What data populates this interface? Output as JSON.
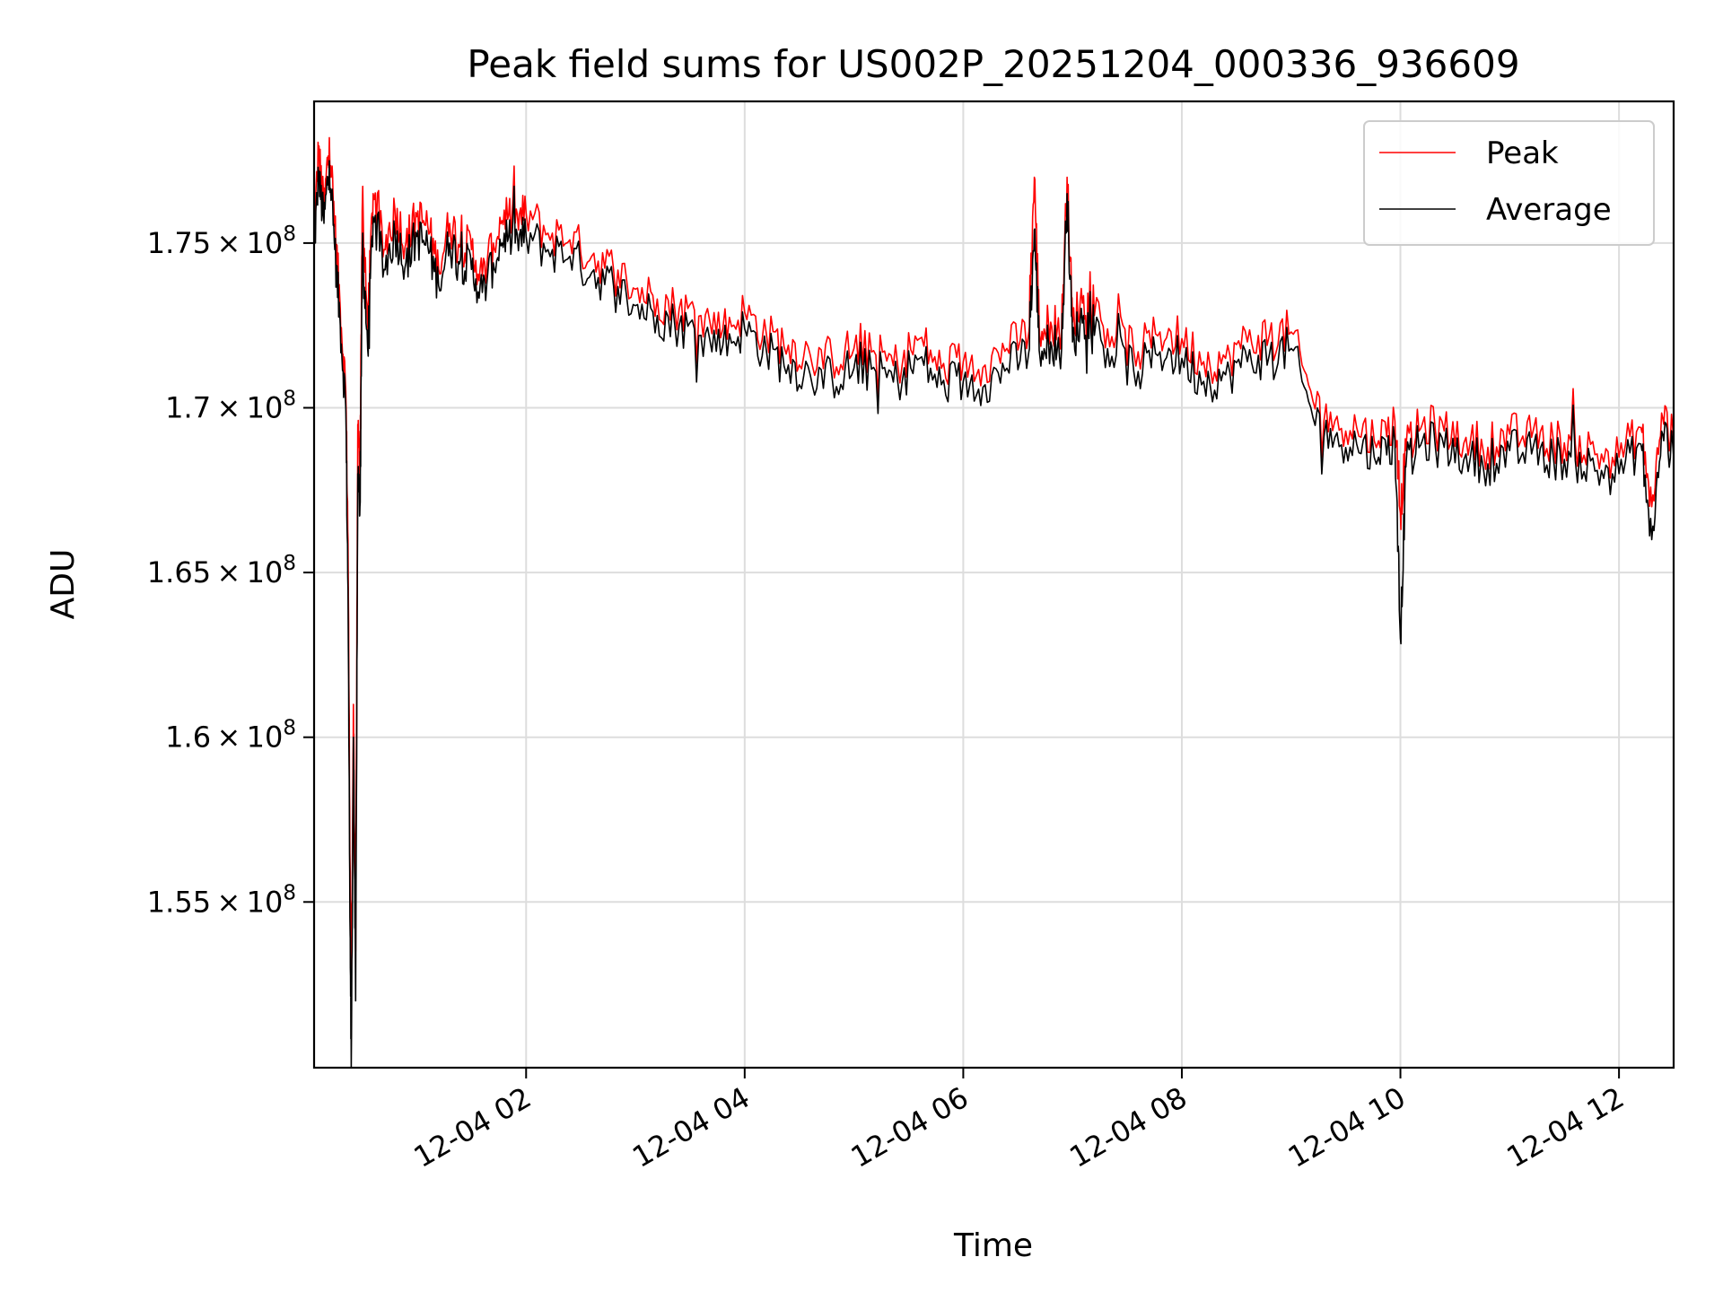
{
  "chart_data": {
    "type": "line",
    "title": "Peak field sums for US002P_20251204_000336_936609",
    "xlabel": "Time",
    "ylabel": "ADU",
    "x_range_hours": [
      0.06,
      12.5
    ],
    "ylim": [
      149970000.0,
      179300000.0
    ],
    "grid": true,
    "legend_position": "top-right",
    "x_ticks": [
      {
        "value": 2,
        "label": "12-04 02"
      },
      {
        "value": 4,
        "label": "12-04 04"
      },
      {
        "value": 6,
        "label": "12-04 06"
      },
      {
        "value": 8,
        "label": "12-04 08"
      },
      {
        "value": 10,
        "label": "12-04 10"
      },
      {
        "value": 12,
        "label": "12-04 12"
      }
    ],
    "y_ticks": [
      {
        "value": 175000000,
        "mantissa": "1.75",
        "exponent": "8"
      },
      {
        "value": 170000000,
        "mantissa": "1.7",
        "exponent": "8"
      },
      {
        "value": 165000000,
        "mantissa": "1.65",
        "exponent": "8"
      },
      {
        "value": 160000000,
        "mantissa": "1.6",
        "exponent": "8"
      },
      {
        "value": 155000000,
        "mantissa": "1.55",
        "exponent": "8"
      }
    ],
    "series": [
      {
        "name": "Peak",
        "color": "#ff0000",
        "x": [
          0.06,
          0.1,
          0.15,
          0.2,
          0.25,
          0.3,
          0.35,
          0.37,
          0.39,
          0.4,
          0.42,
          0.44,
          0.46,
          0.48,
          0.5,
          0.55,
          0.6,
          0.7,
          0.8,
          0.9,
          1.0,
          1.1,
          1.2,
          1.3,
          1.4,
          1.5,
          1.6,
          1.7,
          1.8,
          1.9,
          2.0,
          2.2,
          2.4,
          2.6,
          2.8,
          3.0,
          3.2,
          3.4,
          3.6,
          3.8,
          4.0,
          4.2,
          4.4,
          4.6,
          4.8,
          5.0,
          5.2,
          5.4,
          5.6,
          5.8,
          6.0,
          6.2,
          6.4,
          6.6,
          6.65,
          6.7,
          6.8,
          6.9,
          6.95,
          7.0,
          7.1,
          7.2,
          7.4,
          7.6,
          7.8,
          8.0,
          8.2,
          8.4,
          8.6,
          8.8,
          9.0,
          9.2,
          9.4,
          9.6,
          9.8,
          9.95,
          10.0,
          10.05,
          10.2,
          10.4,
          10.6,
          10.8,
          11.0,
          11.2,
          11.4,
          11.6,
          11.8,
          12.0,
          12.2,
          12.3,
          12.4,
          12.5
        ],
        "values": [
          175.2,
          177.8,
          176.0,
          178.2,
          175.5,
          173.0,
          170.5,
          166.0,
          156.0,
          152.0,
          161.0,
          153.5,
          169.5,
          168.0,
          176.0,
          172.5,
          176.5,
          174.8,
          176.0,
          175.0,
          175.8,
          175.5,
          174.2,
          175.6,
          175.0,
          174.8,
          174.0,
          175.0,
          176.0,
          175.6,
          175.9,
          175.3,
          175.1,
          174.6,
          174.2,
          173.6,
          173.3,
          173.0,
          172.8,
          172.4,
          172.9,
          172.2,
          171.9,
          171.6,
          171.5,
          171.8,
          171.6,
          171.3,
          172.1,
          171.2,
          171.4,
          171.3,
          171.8,
          172.3,
          177.0,
          172.2,
          172.6,
          172.4,
          177.0,
          172.6,
          173.4,
          172.8,
          172.2,
          171.7,
          172.3,
          172.1,
          171.4,
          171.5,
          172.0,
          172.2,
          172.3,
          170.2,
          169.6,
          169.4,
          169.0,
          169.6,
          166.8,
          168.7,
          169.5,
          169.3,
          169.1,
          168.8,
          169.2,
          169.1,
          169.0,
          168.9,
          168.6,
          168.5,
          169.4,
          167.0,
          169.7,
          169.0
        ]
      },
      {
        "name": "Average",
        "color": "#000000",
        "x": [
          0.06,
          0.1,
          0.15,
          0.2,
          0.25,
          0.3,
          0.35,
          0.37,
          0.39,
          0.4,
          0.42,
          0.44,
          0.46,
          0.48,
          0.5,
          0.55,
          0.6,
          0.7,
          0.8,
          0.9,
          1.0,
          1.1,
          1.2,
          1.3,
          1.4,
          1.5,
          1.6,
          1.7,
          1.8,
          1.9,
          2.0,
          2.2,
          2.4,
          2.6,
          2.8,
          3.0,
          3.2,
          3.4,
          3.6,
          3.8,
          4.0,
          4.2,
          4.4,
          4.6,
          4.8,
          5.0,
          5.2,
          5.4,
          5.6,
          5.8,
          6.0,
          6.2,
          6.4,
          6.6,
          6.65,
          6.7,
          6.8,
          6.9,
          6.95,
          7.0,
          7.1,
          7.2,
          7.4,
          7.6,
          7.8,
          8.0,
          8.2,
          8.4,
          8.6,
          8.8,
          9.0,
          9.2,
          9.4,
          9.6,
          9.8,
          9.95,
          10.0,
          10.05,
          10.2,
          10.4,
          10.6,
          10.8,
          11.0,
          11.2,
          11.4,
          11.6,
          11.8,
          12.0,
          12.2,
          12.3,
          12.4,
          12.5
        ],
        "values": [
          174.8,
          177.0,
          175.6,
          177.5,
          174.8,
          172.5,
          170.0,
          164.5,
          154.0,
          150.0,
          160.0,
          152.0,
          168.0,
          167.0,
          174.5,
          171.8,
          175.8,
          174.2,
          175.3,
          174.4,
          175.2,
          174.9,
          173.7,
          175.0,
          174.5,
          174.2,
          173.5,
          174.4,
          175.3,
          175.0,
          175.2,
          174.8,
          174.6,
          174.1,
          173.7,
          173.1,
          172.8,
          172.5,
          172.2,
          171.9,
          172.4,
          171.7,
          171.3,
          171.0,
          170.9,
          171.2,
          171.1,
          170.8,
          171.5,
          170.7,
          170.8,
          170.7,
          171.2,
          171.7,
          175.4,
          171.6,
          172.0,
          171.8,
          176.5,
          172.0,
          172.8,
          172.2,
          171.6,
          171.1,
          171.7,
          171.5,
          170.8,
          171.0,
          171.4,
          171.6,
          171.8,
          169.7,
          169.1,
          168.9,
          168.5,
          169.0,
          163.0,
          168.2,
          169.0,
          168.8,
          168.6,
          168.3,
          168.7,
          168.6,
          168.5,
          168.4,
          168.1,
          168.0,
          168.9,
          166.0,
          169.2,
          168.5
        ]
      }
    ]
  }
}
